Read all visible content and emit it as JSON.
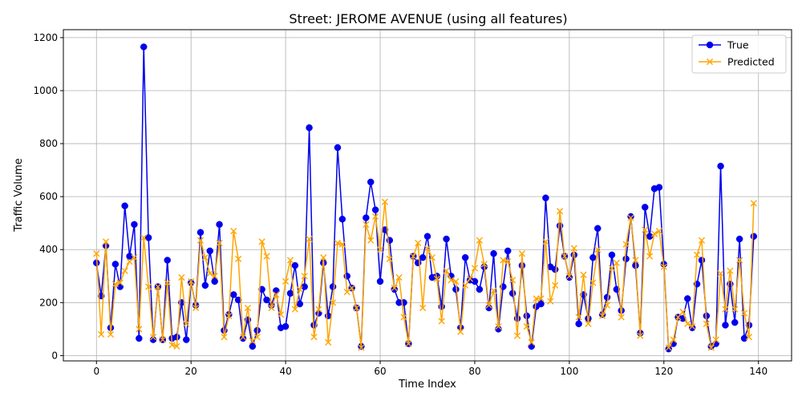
{
  "chart_data": {
    "type": "line",
    "title": "Street: JEROME AVENUE (using all features)",
    "xlabel": "Time Index",
    "ylabel": "Traffic Volume",
    "xlim": [
      -7,
      147
    ],
    "ylim": [
      -20,
      1230
    ],
    "xticks": [
      0,
      20,
      40,
      60,
      80,
      100,
      120,
      140
    ],
    "yticks": [
      0,
      200,
      400,
      600,
      800,
      1000,
      1200
    ],
    "grid": true,
    "legend_position": "top-right",
    "series": [
      {
        "name": "True",
        "color": "#0000ee",
        "marker": "circle",
        "values": [
          350,
          225,
          415,
          105,
          345,
          260,
          565,
          375,
          495,
          65,
          1165,
          445,
          60,
          260,
          60,
          360,
          65,
          70,
          200,
          60,
          275,
          190,
          465,
          265,
          395,
          280,
          495,
          95,
          155,
          230,
          210,
          65,
          135,
          35,
          95,
          250,
          210,
          190,
          245,
          105,
          110,
          235,
          340,
          195,
          260,
          860,
          115,
          160,
          350,
          150,
          260,
          785,
          515,
          300,
          255,
          180,
          35,
          520,
          655,
          550,
          280,
          475,
          435,
          250,
          200,
          200,
          45,
          375,
          350,
          370,
          450,
          295,
          300,
          185,
          440,
          300,
          250,
          105,
          370,
          285,
          280,
          250,
          335,
          180,
          385,
          100,
          260,
          395,
          235,
          140,
          340,
          150,
          35,
          185,
          195,
          595,
          335,
          325,
          490,
          375,
          295,
          380,
          120,
          230,
          140,
          370,
          480,
          155,
          220,
          380,
          250,
          170,
          365,
          525,
          340,
          85,
          560,
          450,
          630,
          635,
          345,
          25,
          45,
          145,
          140,
          215,
          105,
          270,
          360,
          150,
          35,
          45,
          715,
          115,
          270,
          125,
          440,
          65,
          115,
          450
        ]
      },
      {
        "name": "Predicted",
        "color": "#ffa500",
        "marker": "x",
        "values": [
          385,
          80,
          430,
          80,
          270,
          275,
          320,
          355,
          370,
          100,
          445,
          260,
          70,
          260,
          60,
          275,
          40,
          35,
          295,
          120,
          280,
          180,
          435,
          370,
          310,
          300,
          425,
          70,
          150,
          470,
          365,
          70,
          180,
          55,
          70,
          430,
          375,
          180,
          230,
          155,
          280,
          360,
          175,
          250,
          300,
          440,
          70,
          175,
          370,
          50,
          200,
          425,
          420,
          240,
          255,
          180,
          30,
          495,
          435,
          525,
          400,
          580,
          365,
          255,
          295,
          145,
          45,
          375,
          425,
          180,
          405,
          370,
          290,
          130,
          320,
          285,
          280,
          90,
          265,
          290,
          330,
          435,
          345,
          190,
          245,
          110,
          360,
          355,
          285,
          75,
          385,
          110,
          50,
          215,
          215,
          430,
          205,
          265,
          545,
          375,
          300,
          405,
          145,
          305,
          120,
          275,
          400,
          150,
          190,
          330,
          350,
          145,
          420,
          520,
          360,
          75,
          475,
          375,
          460,
          470,
          335,
          30,
          60,
          145,
          165,
          120,
          110,
          380,
          435,
          120,
          30,
          60,
          310,
          175,
          320,
          175,
          360,
          160,
          70,
          575
        ]
      }
    ]
  }
}
